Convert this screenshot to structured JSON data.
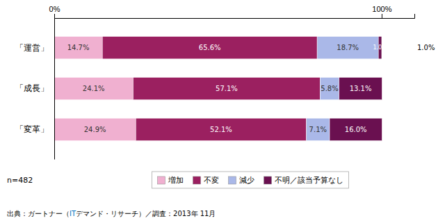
{
  "chart_data": {
    "type": "bar",
    "orientation": "horizontal",
    "stacked": true,
    "data_labels": true,
    "categories": [
      "「運営」",
      "「成長」",
      "「変革」"
    ],
    "series": [
      {
        "name": "増加",
        "color": "#f0b0d0",
        "values": [
          14.7,
          24.1,
          24.9
        ],
        "value_labels": [
          "14.7%",
          "24.1%",
          "24.9%"
        ]
      },
      {
        "name": "不変",
        "color": "#9b2060",
        "values": [
          65.6,
          57.1,
          52.1
        ],
        "value_labels": [
          "65.6%",
          "57.1%",
          "52.1%"
        ]
      },
      {
        "name": "減少",
        "color": "#aab8e8",
        "values": [
          18.7,
          5.8,
          7.1
        ],
        "value_labels": [
          "18.7%",
          "5.8%",
          "7.1%"
        ]
      },
      {
        "name": "不明／該当予算なし",
        "color": "#6a1050",
        "values": [
          1.0,
          13.1,
          16.0
        ],
        "value_labels": [
          "1.0%",
          "13.1%",
          "16.0%"
        ]
      }
    ],
    "xlim": [
      0,
      110
    ],
    "xticks": [
      {
        "value": 0,
        "label": "0%"
      },
      {
        "value": 100,
        "label": "100%"
      }
    ],
    "grid": false,
    "legend": "bottom",
    "annotations": [
      {
        "text": "1.0%",
        "category": "「運営」"
      }
    ],
    "note": "n=482",
    "source": [
      {
        "text": "出典：ガートナー（",
        "color": "black"
      },
      {
        "text": "IT",
        "color": "#0070c0"
      },
      {
        "text": "デマンド・リサーチ）／調査：2013年 11月",
        "color": "black"
      }
    ]
  }
}
